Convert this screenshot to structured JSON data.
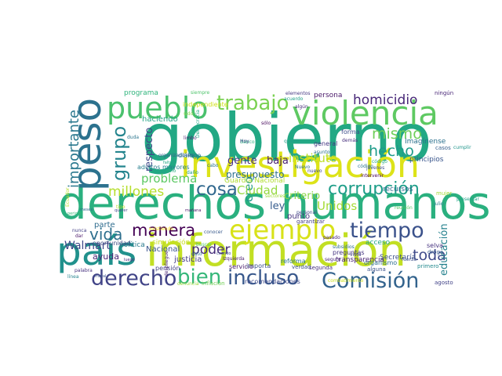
{
  "words": [
    {
      "text": "gobierno",
      "color": "#22a884"
    },
    {
      "text": "derechos humanos",
      "color": "#2ab07f"
    },
    {
      "text": "información",
      "color": "#c2df23"
    },
    {
      "text": "país",
      "color": "#21918c"
    },
    {
      "text": "investigación",
      "color": "#dde318"
    },
    {
      "text": "violencia",
      "color": "#5ec962"
    },
    {
      "text": "peso",
      "color": "#2c728e"
    },
    {
      "text": "pueblo",
      "color": "#4ac16d"
    },
    {
      "text": "Comisión",
      "color": "#33638d"
    },
    {
      "text": "ejemplo",
      "color": "#d8e219"
    },
    {
      "text": "incluso",
      "color": "#38588c"
    },
    {
      "text": "derecho",
      "color": "#414487"
    },
    {
      "text": "bien",
      "color": "#35b779"
    },
    {
      "text": "tiempo",
      "color": "#3b528b"
    },
    {
      "text": "trabajo",
      "color": "#7ad151"
    },
    {
      "text": "corrupción",
      "color": "#1f9e89"
    },
    {
      "text": "grupo",
      "color": "#25858e"
    },
    {
      "text": "importante",
      "color": "#2a788e"
    },
    {
      "text": "cosa",
      "color": "#31688e"
    },
    {
      "text": "vida",
      "color": "#2e6f8e"
    },
    {
      "text": "manera",
      "color": "#440154"
    },
    {
      "text": "homicidio",
      "color": "#482878"
    },
    {
      "text": "mismo",
      "color": "#6ece58"
    },
    {
      "text": "hecho",
      "color": "#1e9b8a"
    },
    {
      "text": "millones",
      "color": "#b5de2b"
    },
    {
      "text": "toda",
      "color": "#3e4989"
    },
    {
      "text": "Unidos",
      "color": "#a5db36"
    },
    {
      "text": "poder",
      "color": "#472d7b"
    },
    {
      "text": "problema",
      "color": "#5cc863"
    },
    {
      "text": "instituto",
      "color": "#bddf26"
    },
    {
      "text": "creo",
      "color": "#1f988b"
    },
    {
      "text": "educación",
      "color": "#26828e"
    },
    {
      "text": "Walmart",
      "color": "#3f4788"
    },
    {
      "text": "Ciudad",
      "color": "#95d840"
    },
    {
      "text": "respecto",
      "color": "#404688"
    },
    {
      "text": "baja",
      "color": "#481f70"
    },
    {
      "text": "gente",
      "color": "#46327e"
    },
    {
      "text": "ley",
      "color": "#365c8d"
    },
    {
      "text": "criterio",
      "color": "#8bd646"
    },
    {
      "text": "presupuesto",
      "color": "#2d708e"
    },
    {
      "text": "parte",
      "color": "#2f6c8e"
    },
    {
      "text": "ayuda",
      "color": "#482475"
    },
    {
      "text": "Nacional",
      "color": "#3a548c"
    },
    {
      "text": "punto",
      "color": "#463480"
    },
    {
      "text": "haciendo",
      "color": "#20a386"
    },
    {
      "text": "programa",
      "color": "#2fb47c"
    },
    {
      "text": "adultos mayores",
      "color": "#277f8e"
    },
    {
      "text": "principios",
      "color": "#39558c"
    },
    {
      "text": "general",
      "color": "#453882"
    },
    {
      "text": "forma",
      "color": "#3d4e8a"
    },
    {
      "text": "persona",
      "color": "#481668"
    },
    {
      "text": "diálogo",
      "color": "#2b748e"
    },
    {
      "text": "Guardia Nacional",
      "color": "#b0dd2f"
    },
    {
      "text": "independiente",
      "color": "#d0e11c"
    },
    {
      "text": "transparencia",
      "color": "#482173"
    },
    {
      "text": "recursos",
      "color": "#306a8e"
    },
    {
      "text": "acceso",
      "color": "#21a685"
    },
    {
      "text": "Secretaría",
      "color": "#3c508b"
    },
    {
      "text": "justicia",
      "color": "#443a83"
    },
    {
      "text": "política",
      "color": "#297b8e"
    },
    {
      "text": "pensión",
      "color": "#424086"
    },
    {
      "text": "servicio",
      "color": "#481c6e"
    },
    {
      "text": "importa",
      "color": "#3b518b"
    },
    {
      "text": "reforma",
      "color": "#2a768e"
    },
    {
      "text": "Imagínense",
      "color": "#2c718e"
    },
    {
      "text": "oportunidad",
      "color": "#434e86"
    },
    {
      "text": "preguntas",
      "color": "#453581"
    },
    {
      "text": "organismo",
      "color": "#2e6e8e"
    },
    {
      "text": "segunda",
      "color": "#46307e"
    },
    {
      "text": "alguna",
      "color": "#3a538b"
    },
    {
      "text": "primero",
      "color": "#23898e"
    },
    {
      "text": "ningún",
      "color": "#482677"
    },
    {
      "text": "recomendaciones",
      "color": "#3e4a89"
    },
    {
      "text": "inflación",
      "color": "#73d056"
    },
    {
      "text": "denuncia",
      "color": "#9bd93c"
    },
    {
      "text": "agosto",
      "color": "#414287"
    },
    {
      "text": "elementos",
      "color": "#453781"
    },
    {
      "text": "acuerdo",
      "color": "#1fa187"
    },
    {
      "text": "mujer",
      "color": "#a2da37"
    },
    {
      "text": "verdad",
      "color": "#3c4f8a"
    },
    {
      "text": "simulación",
      "color": "#c8e020"
    },
    {
      "text": "buscar",
      "color": "#54c568"
    },
    {
      "text": "personal",
      "color": "#3f4889"
    },
    {
      "text": "garantizar",
      "color": "#433d84"
    },
    {
      "text": "sido",
      "color": "#86d549"
    },
    {
      "text": "conocer",
      "color": "#38598c"
    },
    {
      "text": "pasado",
      "color": "#482576"
    },
    {
      "text": "casos",
      "color": "#355f8d"
    },
    {
      "text": "julio",
      "color": "#277e8e"
    },
    {
      "text": "selva",
      "color": "#46337f"
    },
    {
      "text": "droga",
      "color": "#375a8c"
    },
    {
      "text": "jóvenes",
      "color": "#3d4d8a"
    },
    {
      "text": "Banco",
      "color": "#2ab07f"
    },
    {
      "text": "limbo",
      "color": "#481a6c"
    },
    {
      "text": "dato",
      "color": "#2d718e"
    },
    {
      "text": "vista",
      "color": "#424186"
    },
    {
      "text": "nunca",
      "color": "#433e85"
    },
    {
      "text": "dar",
      "color": "#481467"
    },
    {
      "text": "sino",
      "color": "#29af7f"
    },
    {
      "text": "Hoy",
      "color": "#3f4788"
    },
    {
      "text": "tipo",
      "color": "#b8de29"
    },
    {
      "text": "daño",
      "color": "#1e9c89"
    },
    {
      "text": "duda",
      "color": "#2b758e"
    },
    {
      "text": "siempre",
      "color": "#4ec36b"
    },
    {
      "text": "sólo",
      "color": "#46085c"
    },
    {
      "text": "código",
      "color": "#2c738e"
    },
    {
      "text": "fuerza",
      "color": "#3c4f8a"
    },
    {
      "text": "código",
      "color": "#23a983"
    },
    {
      "text": "palabra",
      "color": "#46307e"
    },
    {
      "text": "línea",
      "color": "#25848e"
    },
    {
      "text": "periodo",
      "color": "#37b878"
    },
    {
      "text": "luego",
      "color": "#482979"
    },
    {
      "text": "moral",
      "color": "#3b528b"
    },
    {
      "text": "Izquierda",
      "color": "#481b6d"
    },
    {
      "text": "meses",
      "color": "#31688e"
    },
    {
      "text": "seguro",
      "color": "#482878"
    },
    {
      "text": "intervenir",
      "color": "#440154"
    },
    {
      "text": "Nuevo",
      "color": "#2d708e"
    },
    {
      "text": "nuevo",
      "color": "#3e4989"
    },
    {
      "text": "quiero",
      "color": "#1f9f88"
    },
    {
      "text": "organizaciones",
      "color": "#34618d"
    },
    {
      "text": "subsidios",
      "color": "#2e6d8e"
    },
    {
      "text": "Ecuador",
      "color": "#bade28"
    },
    {
      "text": "Democracia",
      "color": "#22a785"
    },
    {
      "text": "mañana",
      "color": "#471365"
    },
    {
      "text": "cuando",
      "color": "#3e4c8a"
    },
    {
      "text": "algún",
      "color": "#472c7a"
    },
    {
      "text": "querer",
      "color": "#3f4889"
    },
    {
      "text": "falta",
      "color": "#22a785"
    },
    {
      "text": "demás",
      "color": "#472f7d"
    },
    {
      "text": "presentar",
      "color": "#1fa287"
    },
    {
      "text": "cabo",
      "color": "#2b748e"
    },
    {
      "text": "combatimiento",
      "color": "#cde11d"
    },
    {
      "text": "despliegue",
      "color": "#482475"
    },
    {
      "text": "existiendo",
      "color": "#fde725"
    },
    {
      "text": "sectores",
      "color": "#9dd93b"
    },
    {
      "text": "asunto",
      "color": "#2c738e"
    },
    {
      "text": "cumplir",
      "color": "#1f958b"
    },
    {
      "text": "reunión",
      "color": "#5ac864"
    }
  ]
}
